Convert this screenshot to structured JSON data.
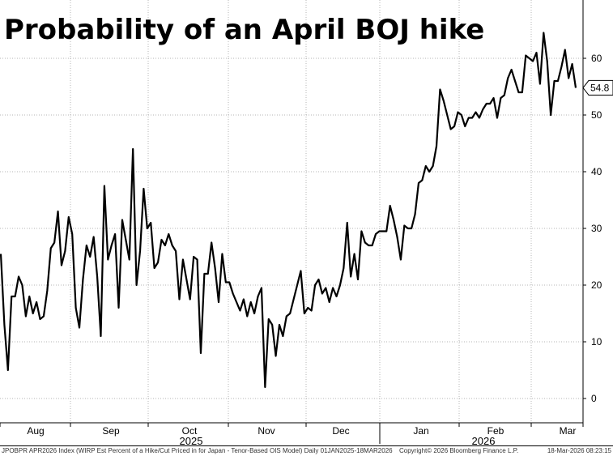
{
  "chart_data": {
    "type": "line",
    "title": "Probability of an April BOJ hike",
    "ylim": [
      -4.5,
      70
    ],
    "y_ticks": [
      0,
      10,
      20,
      30,
      40,
      50,
      60
    ],
    "grid": true,
    "y_axis_position": "right",
    "months": [
      "Aug",
      "Sep",
      "Oct",
      "Nov",
      "Dec",
      "Jan",
      "Feb",
      "Mar"
    ],
    "years": [
      "2025",
      "2026"
    ],
    "last_value_label": "54.8",
    "series": [
      {
        "values": [
          25.5,
          13,
          5,
          18,
          18,
          21.5,
          20,
          14.5,
          18,
          15,
          17,
          14,
          14.5,
          19,
          26.5,
          27.5,
          33,
          23.5,
          26,
          32,
          29,
          16,
          12.5,
          21,
          27,
          25,
          28.5,
          21.5,
          11,
          37.5,
          24.5,
          27,
          29,
          16,
          31.5,
          28,
          24.5,
          44,
          20,
          26,
          37,
          30,
          31,
          23,
          24,
          28,
          27,
          29,
          27,
          26,
          17.5,
          24.5,
          21,
          17.5,
          25,
          24.5,
          8,
          22,
          22,
          27.5,
          23,
          17,
          25.5,
          20.5,
          20.5,
          18.5,
          17,
          15.5,
          17.5,
          14.5,
          17,
          15,
          18,
          19.5,
          2,
          14,
          13,
          7.5,
          13,
          11,
          14.5,
          15,
          17.5,
          20,
          22.5,
          15,
          16,
          15.5,
          20,
          21,
          18.5,
          19.5,
          17,
          19.5,
          18,
          20,
          23,
          31,
          21.5,
          25.5,
          21,
          29.5,
          27.5,
          27,
          27,
          29,
          29.5,
          29.5,
          29.5,
          34,
          31.5,
          28.5,
          24.5,
          30.5,
          30,
          30,
          32.5,
          38,
          38.5,
          41,
          40,
          41,
          44.5,
          54.5,
          52.5,
          50,
          47.5,
          48,
          50.5,
          50,
          48,
          49.5,
          49.5,
          50.5,
          49.5,
          51,
          52,
          52,
          53,
          49.5,
          53,
          53.5,
          56.5,
          58,
          56,
          54,
          54,
          60.5,
          60,
          59.5,
          61,
          55.5,
          64.5,
          59.5,
          50,
          56,
          56,
          58.5,
          61.5,
          56.5,
          59,
          54.8
        ]
      }
    ]
  },
  "footer": {
    "source": "JPOBPR APR2026 Index (WIRP Est Percent of a Hike/Cut Priced in for Japan - Tenor-Based OIS Model) Daily 01JAN2025-18MAR2026",
    "copyright": "Copyright© 2026 Bloomberg Finance L.P.",
    "timestamp": "18-Mar-2026 08:23:15"
  }
}
